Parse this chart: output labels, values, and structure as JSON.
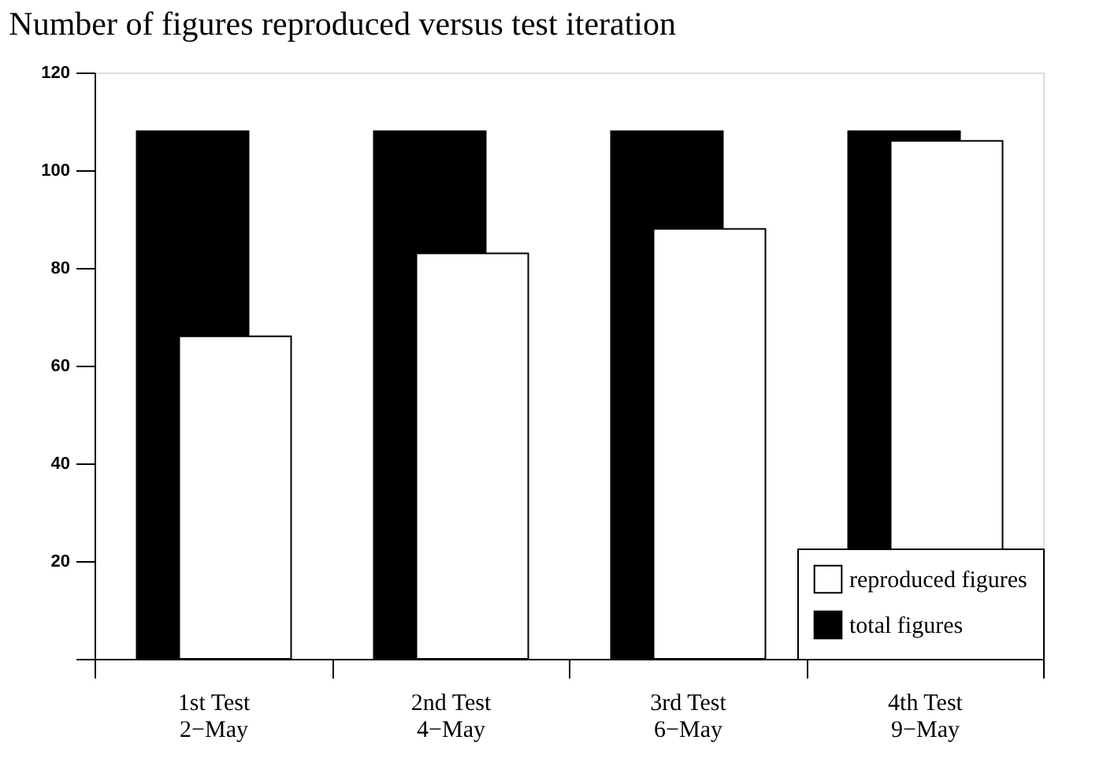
{
  "chart_data": {
    "type": "bar",
    "title": "Number of figures reproduced versus test iteration",
    "categories": [
      "1st Test\n2−May",
      "2nd Test\n4−May",
      "3rd Test\n6−May",
      "4th Test\n9−May"
    ],
    "series": [
      {
        "name": "reproduced figures",
        "color": "#ffffff",
        "values": [
          66,
          83,
          88,
          106
        ]
      },
      {
        "name": "total figures",
        "color": "#000000",
        "values": [
          108,
          108,
          108,
          108
        ]
      }
    ],
    "ylim": [
      0,
      120
    ],
    "yticks": [
      {
        "value": 0,
        "label": null
      },
      20,
      40,
      60,
      80,
      100,
      120
    ],
    "grid": false,
    "legend": "bottom right"
  }
}
